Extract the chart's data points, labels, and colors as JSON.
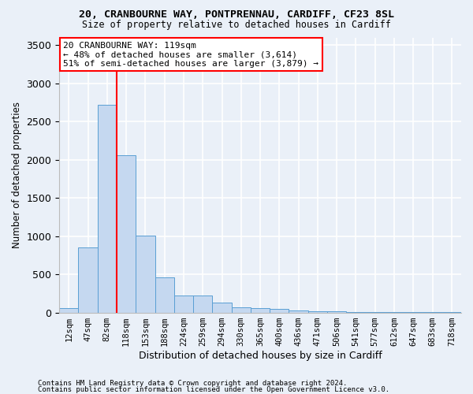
{
  "title_line1": "20, CRANBOURNE WAY, PONTPRENNAU, CARDIFF, CF23 8SL",
  "title_line2": "Size of property relative to detached houses in Cardiff",
  "xlabel": "Distribution of detached houses by size in Cardiff",
  "ylabel": "Number of detached properties",
  "categories": [
    "12sqm",
    "47sqm",
    "82sqm",
    "118sqm",
    "153sqm",
    "188sqm",
    "224sqm",
    "259sqm",
    "294sqm",
    "330sqm",
    "365sqm",
    "400sqm",
    "436sqm",
    "471sqm",
    "506sqm",
    "541sqm",
    "577sqm",
    "612sqm",
    "647sqm",
    "683sqm",
    "718sqm"
  ],
  "values": [
    60,
    850,
    2720,
    2060,
    1010,
    455,
    220,
    220,
    130,
    65,
    55,
    45,
    30,
    20,
    20,
    10,
    5,
    5,
    5,
    5,
    5
  ],
  "bar_color": "#c5d8f0",
  "bar_edge_color": "#5a9fd4",
  "vline_color": "red",
  "annotation_line1": "20 CRANBOURNE WAY: 119sqm",
  "annotation_line2": "← 48% of detached houses are smaller (3,614)",
  "annotation_line3": "51% of semi-detached houses are larger (3,879) →",
  "annotation_box_color": "white",
  "annotation_box_edge": "red",
  "ylim": [
    0,
    3600
  ],
  "yticks": [
    0,
    500,
    1000,
    1500,
    2000,
    2500,
    3000,
    3500
  ],
  "footnote1": "Contains HM Land Registry data © Crown copyright and database right 2024.",
  "footnote2": "Contains public sector information licensed under the Open Government Licence v3.0.",
  "bg_color": "#eaf0f8",
  "grid_color": "white"
}
